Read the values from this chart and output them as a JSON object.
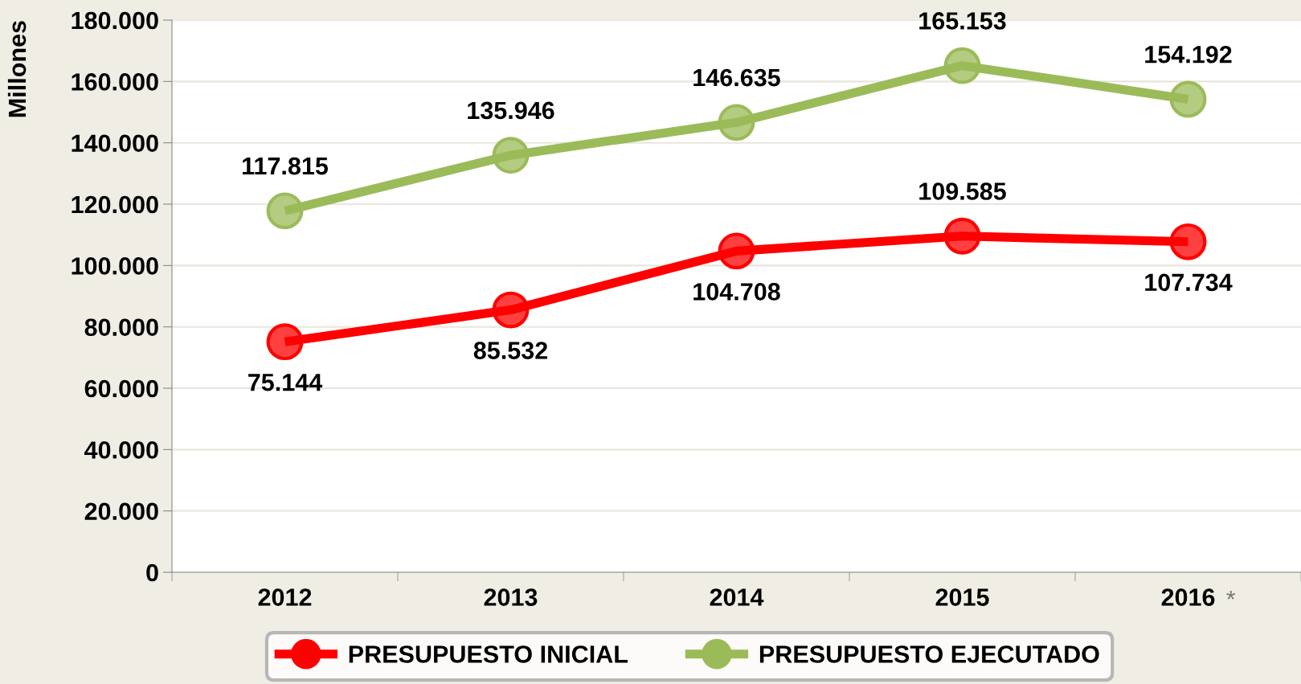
{
  "chart_data": {
    "type": "line",
    "ylabel": "Millones",
    "categories": [
      "2012",
      "2013",
      "2014",
      "2015",
      "2016"
    ],
    "series": [
      {
        "name": "PRESUPUESTO INICIAL",
        "color": "#ff0000",
        "values": [
          75144,
          85532,
          104708,
          109585,
          107734
        ],
        "value_labels": [
          "75.144",
          "85.532",
          "104.708",
          "109.585",
          "107.734"
        ]
      },
      {
        "name": "PRESUPUESTO EJECUTADO",
        "color": "#9bbb59",
        "values": [
          117815,
          135946,
          146635,
          165153,
          154192
        ],
        "value_labels": [
          "117.815",
          "135.946",
          "146.635",
          "165.153",
          "154.192"
        ]
      }
    ],
    "ylim": [
      0,
      180000
    ],
    "yticks": [
      0,
      {
        "value": 20000,
        "label": "20.000"
      },
      {
        "value": 40000,
        "label": "40.000"
      },
      {
        "value": 60000,
        "label": "60.000"
      },
      {
        "value": 80000,
        "label": "80.000"
      },
      {
        "value": 100000,
        "label": "100.000"
      },
      {
        "value": 120000,
        "label": "120.000"
      },
      {
        "value": 140000,
        "label": "140.000"
      },
      {
        "value": 160000,
        "label": "160.000"
      },
      {
        "value": 180000,
        "label": "180.000"
      }
    ],
    "annotations": [
      "*"
    ],
    "grid": "y",
    "legend": "bottom",
    "marker": "circle",
    "line_style": "solid"
  }
}
